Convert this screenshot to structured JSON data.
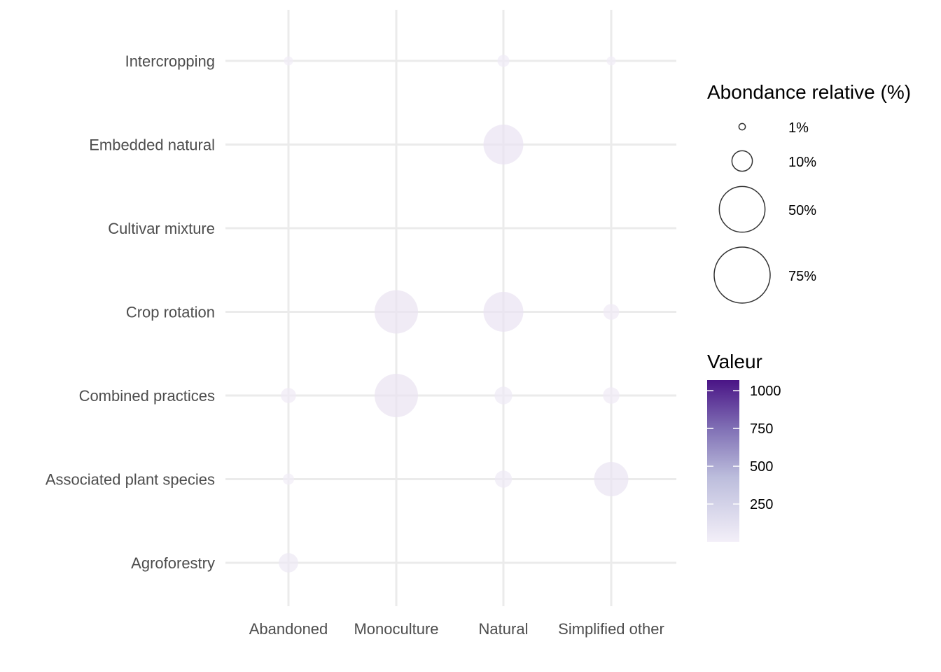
{
  "chart_data": {
    "type": "scatter",
    "x_categories": [
      "Abandoned",
      "Monoculture",
      "Natural",
      "Simplified other"
    ],
    "y_categories": [
      "Agroforestry",
      "Associated plant species",
      "Combined practices",
      "Crop rotation",
      "Cultivar mixture",
      "Embedded natural",
      "Intercropping"
    ],
    "points": [
      {
        "x": "Abandoned",
        "y": "Intercropping",
        "size_pct": 2,
        "value": 10
      },
      {
        "x": "Natural",
        "y": "Intercropping",
        "size_pct": 3.5,
        "value": 20
      },
      {
        "x": "Simplified other",
        "y": "Intercropping",
        "size_pct": 2,
        "value": 10
      },
      {
        "x": "Natural",
        "y": "Embedded natural",
        "size_pct": 38,
        "value": 60
      },
      {
        "x": "Monoculture",
        "y": "Crop rotation",
        "size_pct": 45,
        "value": 65
      },
      {
        "x": "Natural",
        "y": "Crop rotation",
        "size_pct": 38,
        "value": 60
      },
      {
        "x": "Simplified other",
        "y": "Crop rotation",
        "size_pct": 6,
        "value": 25
      },
      {
        "x": "Abandoned",
        "y": "Combined practices",
        "size_pct": 5.5,
        "value": 25
      },
      {
        "x": "Monoculture",
        "y": "Combined practices",
        "size_pct": 45,
        "value": 65
      },
      {
        "x": "Natural",
        "y": "Combined practices",
        "size_pct": 7.5,
        "value": 30
      },
      {
        "x": "Simplified other",
        "y": "Combined practices",
        "size_pct": 6.5,
        "value": 25
      },
      {
        "x": "Abandoned",
        "y": "Associated plant species",
        "size_pct": 3,
        "value": 15
      },
      {
        "x": "Natural",
        "y": "Associated plant species",
        "size_pct": 7,
        "value": 30
      },
      {
        "x": "Simplified other",
        "y": "Associated plant species",
        "size_pct": 28,
        "value": 55
      },
      {
        "x": "Abandoned",
        "y": "Agroforestry",
        "size_pct": 9,
        "value": 35
      }
    ],
    "size_legend": {
      "title": "Abondance relative (%)",
      "breaks": [
        1,
        10,
        50,
        75
      ],
      "labels": [
        "1%",
        "10%",
        "50%",
        "75%"
      ]
    },
    "color_legend": {
      "title": "Valeur",
      "breaks": [
        250,
        500,
        750,
        1000
      ],
      "labels": [
        "250",
        "500",
        "750",
        "1000"
      ],
      "limits": [
        0,
        1070
      ],
      "low_color": "#f3eff8",
      "high_color": "#4a1486"
    },
    "point_opacity": 0.7,
    "grid": true,
    "legend_position": "right"
  }
}
